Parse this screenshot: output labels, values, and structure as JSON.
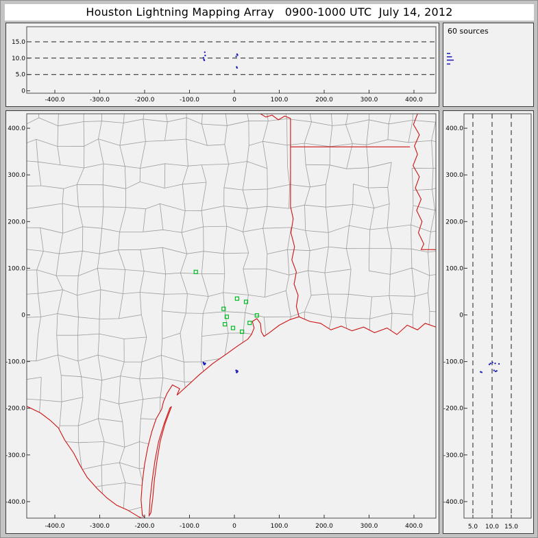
{
  "window": {
    "title": "Houston Lightning Mapping Array   0900-1000 UTC  July 14, 2012"
  },
  "chart_data": {
    "type": "scatter",
    "title": "Houston Lightning Mapping Array   0900-1000 UTC  July 14, 2012",
    "time_range": "0900-1000 UTC",
    "date": "July 14, 2012",
    "source_count": 60,
    "source_count_label": "60 sources",
    "legend": "none",
    "grid": "dashed altitude gridlines at 5, 10, 15 km in altitude panels",
    "colors": {
      "panel_bg": "#f1f1f1",
      "window_gray": "#c3c3c3",
      "plot_frame": "#3a3a3a",
      "county_line": "#9c9c9c",
      "state_border": "#cc1111",
      "station_marker": "#00bb22",
      "source_point": "#2222bb",
      "gridline": "#1a1a1a"
    },
    "axes": {
      "east_west_km": {
        "range": [
          -462,
          449
        ],
        "ticks": [
          -400,
          -300,
          -200,
          -100,
          0,
          100,
          200,
          300,
          400
        ],
        "tick_labels": [
          "-400.0",
          "-300.0",
          "-200.0",
          "-100.0",
          "0",
          "100.0",
          "200.0",
          "300.0",
          "400.0"
        ]
      },
      "north_south_km": {
        "range": [
          -435,
          431
        ],
        "ticks": [
          400,
          300,
          200,
          100,
          0,
          -100,
          -200,
          -300,
          -400
        ],
        "tick_labels": [
          "400.0",
          "300.0",
          "200.0",
          "100.0",
          "0",
          "-100.0",
          "-200.0",
          "-300.0",
          "-400.0"
        ]
      },
      "altitude_km_top_panel": {
        "range": [
          0,
          20
        ],
        "ticks": [
          15,
          10,
          5,
          0
        ],
        "tick_labels": [
          "15.0",
          "10.0",
          "5.0",
          "0"
        ],
        "gridlines": [
          5,
          10,
          15
        ]
      },
      "altitude_km_right_panel": {
        "range": [
          0,
          20
        ],
        "ticks": [
          5,
          10,
          15
        ],
        "tick_labels": [
          "5.0",
          "10.0",
          "15.0"
        ],
        "gridlines": [
          5,
          10,
          15
        ]
      }
    },
    "stations_km": [
      [
        -86,
        92
      ],
      [
        6,
        35
      ],
      [
        26,
        28
      ],
      [
        -24,
        13
      ],
      [
        50,
        -1
      ],
      [
        -17,
        -4
      ],
      [
        34,
        -17
      ],
      [
        -21,
        -20
      ],
      [
        -3,
        -28
      ],
      [
        17,
        -36
      ]
    ],
    "sources_km": [
      {
        "ew": -68,
        "ns": -104,
        "alt": 9.6
      },
      {
        "ew": -66,
        "ns": -105,
        "alt": 11.8
      },
      {
        "ew": -69,
        "ns": -102,
        "alt": 10.1
      },
      {
        "ew": -67,
        "ns": -106,
        "alt": 9.3
      },
      {
        "ew": -65,
        "ns": -104,
        "alt": 10.8
      },
      {
        "ew": 6,
        "ns": -122,
        "alt": 7.0
      },
      {
        "ew": 7,
        "ns": -121,
        "alt": 10.9
      },
      {
        "ew": 5,
        "ns": -123,
        "alt": 7.3
      },
      {
        "ew": 6,
        "ns": -120,
        "alt": 11.2
      },
      {
        "ew": 4,
        "ns": -119,
        "alt": 10.5
      }
    ],
    "histogram_bars": [
      {
        "alt": 8.2,
        "count": 2
      },
      {
        "alt": 9.4,
        "count": 4
      },
      {
        "alt": 10.4,
        "count": 3
      },
      {
        "alt": 11.4,
        "count": 2
      }
    ],
    "map_layers": {
      "coastline": [
        [
          455,
          -28
        ],
        [
          425,
          -18
        ],
        [
          408,
          -32
        ],
        [
          385,
          -22
        ],
        [
          362,
          -42
        ],
        [
          340,
          -28
        ],
        [
          312,
          -38
        ],
        [
          288,
          -26
        ],
        [
          262,
          -34
        ],
        [
          238,
          -24
        ],
        [
          215,
          -32
        ],
        [
          192,
          -18
        ],
        [
          168,
          -14
        ],
        [
          144,
          -4
        ],
        [
          124,
          -10
        ],
        [
          100,
          -22
        ],
        [
          78,
          -38
        ],
        [
          66,
          -46
        ],
        [
          60,
          -36
        ],
        [
          58,
          -18
        ],
        [
          50,
          -8
        ],
        [
          40,
          -14
        ],
        [
          44,
          -28
        ],
        [
          38,
          -42
        ],
        [
          30,
          -52
        ],
        [
          8,
          -66
        ],
        [
          -18,
          -84
        ],
        [
          -48,
          -104
        ],
        [
          -78,
          -128
        ],
        [
          -105,
          -152
        ],
        [
          -128,
          -172
        ],
        [
          -122,
          -158
        ],
        [
          -138,
          -150
        ],
        [
          -150,
          -168
        ],
        [
          -158,
          -186
        ],
        [
          -162,
          -202
        ],
        [
          -174,
          -222
        ],
        [
          -184,
          -250
        ],
        [
          -193,
          -284
        ],
        [
          -200,
          -320
        ],
        [
          -205,
          -358
        ],
        [
          -208,
          -396
        ],
        [
          -205,
          -428
        ],
        [
          -196,
          -440
        ]
      ],
      "rio_grande": [
        [
          -196,
          -440
        ],
        [
          -214,
          -432
        ],
        [
          -238,
          -418
        ],
        [
          -262,
          -408
        ],
        [
          -284,
          -392
        ],
        [
          -306,
          -372
        ],
        [
          -328,
          -348
        ],
        [
          -344,
          -322
        ],
        [
          -358,
          -296
        ],
        [
          -378,
          -268
        ],
        [
          -392,
          -242
        ],
        [
          -410,
          -226
        ],
        [
          -432,
          -210
        ],
        [
          -470,
          -192
        ]
      ],
      "barrier_island": [
        [
          -140,
          -196
        ],
        [
          -154,
          -232
        ],
        [
          -165,
          -270
        ],
        [
          -172,
          -310
        ],
        [
          -178,
          -352
        ],
        [
          -182,
          -394
        ],
        [
          -186,
          -424
        ],
        [
          -190,
          -430
        ],
        [
          -188,
          -396
        ],
        [
          -183,
          -354
        ],
        [
          -177,
          -312
        ],
        [
          -169,
          -272
        ],
        [
          -157,
          -234
        ],
        [
          -144,
          -200
        ],
        [
          -140,
          -196
        ]
      ],
      "sabine_border": [
        [
          144,
          -4
        ],
        [
          138,
          18
        ],
        [
          142,
          42
        ],
        [
          133,
          66
        ],
        [
          138,
          92
        ],
        [
          128,
          118
        ],
        [
          134,
          146
        ],
        [
          126,
          176
        ],
        [
          131,
          206
        ],
        [
          125,
          232
        ],
        [
          125,
          249
        ],
        [
          125,
          421
        ]
      ],
      "red_river": [
        [
          125,
          421
        ],
        [
          112,
          426
        ],
        [
          98,
          418
        ],
        [
          84,
          428
        ],
        [
          70,
          424
        ],
        [
          58,
          431
        ]
      ],
      "state_line_33n": [
        [
          125,
          360
        ],
        [
          391,
          360
        ]
      ],
      "mississippi_river": [
        [
          408,
          431
        ],
        [
          399,
          408
        ],
        [
          412,
          386
        ],
        [
          401,
          362
        ],
        [
          408,
          344
        ],
        [
          398,
          320
        ],
        [
          412,
          296
        ],
        [
          403,
          272
        ],
        [
          416,
          248
        ],
        [
          406,
          224
        ],
        [
          418,
          200
        ],
        [
          410,
          176
        ],
        [
          422,
          152
        ],
        [
          416,
          140
        ],
        [
          455,
          140
        ]
      ]
    },
    "counties_mesh": {
      "spacing_km": 46,
      "jitter_km": 18,
      "skip_prob": 0.08,
      "seed": 11
    }
  }
}
